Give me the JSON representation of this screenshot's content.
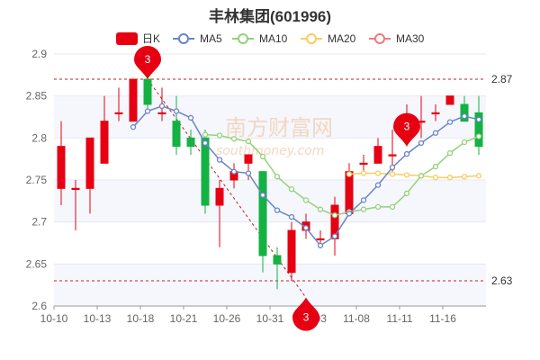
{
  "chart_data": {
    "type": "candlestick",
    "title": "丰林集团(601996)",
    "ylim": [
      2.6,
      2.9
    ],
    "yticks": [
      "2.6",
      "2.65",
      "2.7",
      "2.75",
      "2.8",
      "2.85",
      "2.9"
    ],
    "xticks": [
      "10-10",
      "10-13",
      "10-18",
      "10-21",
      "10-26",
      "10-31",
      "11-03",
      "11-08",
      "11-11",
      "11-16"
    ],
    "legend": [
      {
        "name": "日K",
        "color": "#e60012"
      },
      {
        "name": "MA5",
        "color": "#6a84c8"
      },
      {
        "name": "MA10",
        "color": "#95d17a"
      },
      {
        "name": "MA20",
        "color": "#f7cd5c"
      },
      {
        "name": "MA30",
        "color": "#ef7b7b"
      }
    ],
    "ref_lines": [
      {
        "value": 2.87,
        "label": "2.87"
      },
      {
        "value": 2.63,
        "label": "2.63"
      }
    ],
    "markers": [
      {
        "label": "3",
        "index": 6,
        "value": 2.87
      },
      {
        "label": "3",
        "index": 17,
        "value": 2.61
      },
      {
        "label": "3",
        "index": 24,
        "value": 2.79
      }
    ],
    "watermark": [
      "南方财富网",
      "southmoney.com"
    ],
    "colors": {
      "up": "#e60012",
      "down": "#14b143",
      "ma5": "#6a84c8",
      "ma10": "#95d17a",
      "ma20": "#f7cd5c"
    },
    "candles": [
      {
        "o": 2.74,
        "c": 2.79,
        "h": 2.82,
        "l": 2.72
      },
      {
        "o": 2.74,
        "c": 2.74,
        "h": 2.75,
        "l": 2.69
      },
      {
        "o": 2.74,
        "c": 2.8,
        "h": 2.8,
        "l": 2.71
      },
      {
        "o": 2.77,
        "c": 2.82,
        "h": 2.85,
        "l": 2.77
      },
      {
        "o": 2.83,
        "c": 2.83,
        "h": 2.86,
        "l": 2.82
      },
      {
        "o": 2.82,
        "c": 2.87,
        "h": 2.87,
        "l": 2.82
      },
      {
        "o": 2.87,
        "c": 2.84,
        "h": 2.87,
        "l": 2.83
      },
      {
        "o": 2.83,
        "c": 2.83,
        "h": 2.86,
        "l": 2.82
      },
      {
        "o": 2.82,
        "c": 2.79,
        "h": 2.85,
        "l": 2.78
      },
      {
        "o": 2.8,
        "c": 2.79,
        "h": 2.81,
        "l": 2.78
      },
      {
        "o": 2.8,
        "c": 2.72,
        "h": 2.81,
        "l": 2.71
      },
      {
        "o": 2.72,
        "c": 2.74,
        "h": 2.75,
        "l": 2.67
      },
      {
        "o": 2.75,
        "c": 2.76,
        "h": 2.77,
        "l": 2.74
      },
      {
        "o": 2.77,
        "c": 2.78,
        "h": 2.78,
        "l": 2.75
      },
      {
        "o": 2.76,
        "c": 2.66,
        "h": 2.76,
        "l": 2.64
      },
      {
        "o": 2.66,
        "c": 2.65,
        "h": 2.67,
        "l": 2.62
      },
      {
        "o": 2.64,
        "c": 2.69,
        "h": 2.7,
        "l": 2.63
      },
      {
        "o": 2.69,
        "c": 2.7,
        "h": 2.71,
        "l": 2.68
      },
      {
        "o": 2.68,
        "c": 2.68,
        "h": 2.69,
        "l": 2.67
      },
      {
        "o": 2.68,
        "c": 2.72,
        "h": 2.73,
        "l": 2.66
      },
      {
        "o": 2.71,
        "c": 2.76,
        "h": 2.77,
        "l": 2.71
      },
      {
        "o": 2.77,
        "c": 2.77,
        "h": 2.78,
        "l": 2.76
      },
      {
        "o": 2.77,
        "c": 2.79,
        "h": 2.8,
        "l": 2.77
      },
      {
        "o": 2.78,
        "c": 2.78,
        "h": 2.81,
        "l": 2.76
      },
      {
        "o": 2.8,
        "c": 2.81,
        "h": 2.84,
        "l": 2.79
      },
      {
        "o": 2.82,
        "c": 2.82,
        "h": 2.85,
        "l": 2.8
      },
      {
        "o": 2.83,
        "c": 2.83,
        "h": 2.84,
        "l": 2.82
      },
      {
        "o": 2.84,
        "c": 2.85,
        "h": 2.85,
        "l": 2.84
      },
      {
        "o": 2.84,
        "c": 2.82,
        "h": 2.85,
        "l": 2.82
      },
      {
        "o": 2.83,
        "c": 2.79,
        "h": 2.85,
        "l": 2.78
      }
    ],
    "ma5": [
      null,
      null,
      null,
      null,
      null,
      2.813,
      2.832,
      2.838,
      2.832,
      2.824,
      2.794,
      2.774,
      2.76,
      2.758,
      2.732,
      2.714,
      2.706,
      2.693,
      2.672,
      2.683,
      2.71,
      2.726,
      2.744,
      2.765,
      2.781,
      2.794,
      2.806,
      2.819,
      2.826,
      2.822
    ],
    "ma10": [
      null,
      null,
      null,
      null,
      null,
      null,
      null,
      null,
      null,
      null,
      2.804,
      2.803,
      2.799,
      2.796,
      2.778,
      2.754,
      2.739,
      2.726,
      2.715,
      2.708,
      2.712,
      2.715,
      2.718,
      2.718,
      2.734,
      2.755,
      2.766,
      2.782,
      2.795,
      2.802
    ],
    "ma20": [
      null,
      null,
      null,
      null,
      null,
      null,
      null,
      null,
      null,
      null,
      null,
      null,
      null,
      null,
      null,
      null,
      null,
      null,
      null,
      null,
      2.757,
      2.758,
      2.758,
      2.757,
      2.756,
      2.755,
      2.753,
      2.753,
      2.754,
      2.755
    ]
  }
}
